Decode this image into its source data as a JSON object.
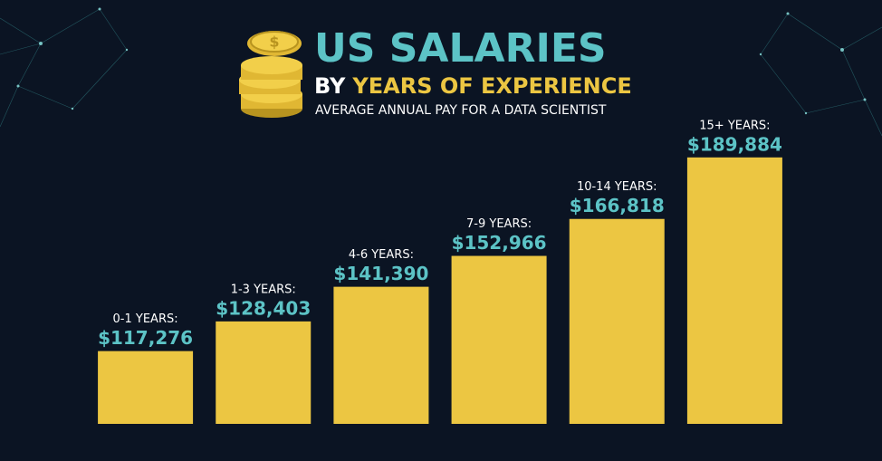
{
  "chart_data": {
    "type": "bar",
    "title": "US SALARIES",
    "subtitle_lead": "BY",
    "subtitle": "YEARS OF EXPERIENCE",
    "caption": "AVERAGE ANNUAL PAY FOR A DATA SCIENTIST",
    "categories": [
      "0-1 YEARS:",
      "1-3 YEARS:",
      "4-6 YEARS:",
      "7-9 YEARS:",
      "10-14 YEARS:",
      "15+ YEARS:"
    ],
    "values": [
      117276,
      128403,
      141390,
      152966,
      166818,
      189884
    ],
    "value_labels": [
      "$117,276",
      "$128,403",
      "$141,390",
      "$152,966",
      "$166,818",
      "$189,884"
    ],
    "color": "#ecc642",
    "ylim": [
      90000,
      200000
    ]
  }
}
